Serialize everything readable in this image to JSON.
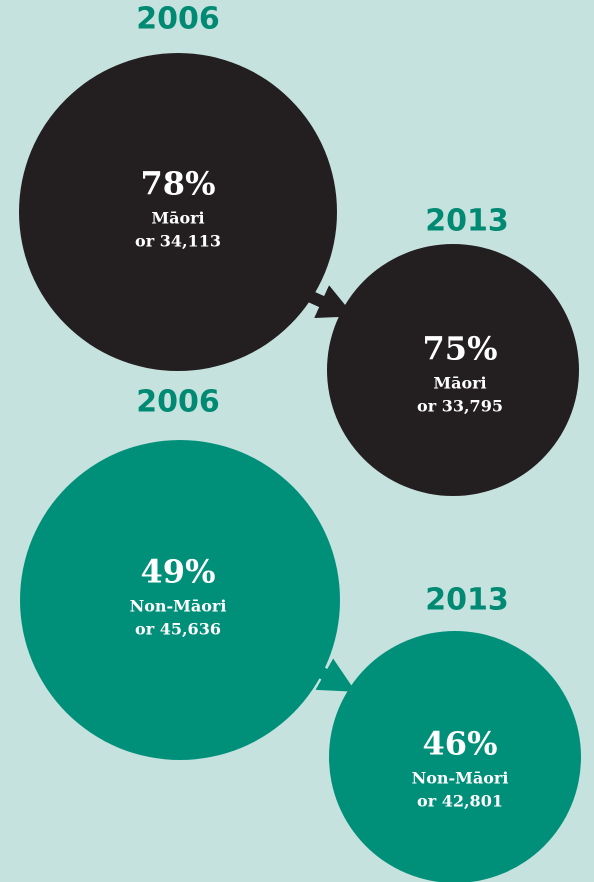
{
  "groups": [
    {
      "before": {
        "year": "2006",
        "percent": "78%",
        "label": "Māori",
        "count": "or 34,113"
      },
      "after": {
        "year": "2013",
        "percent": "75%",
        "label": "Māori",
        "count": "or 33,795"
      }
    },
    {
      "before": {
        "year": "2006",
        "percent": "49%",
        "label": "Non-Māori",
        "count": "or 45,636"
      },
      "after": {
        "year": "2013",
        "percent": "46%",
        "label": "Non-Māori",
        "count": "or 42,801"
      }
    }
  ]
}
